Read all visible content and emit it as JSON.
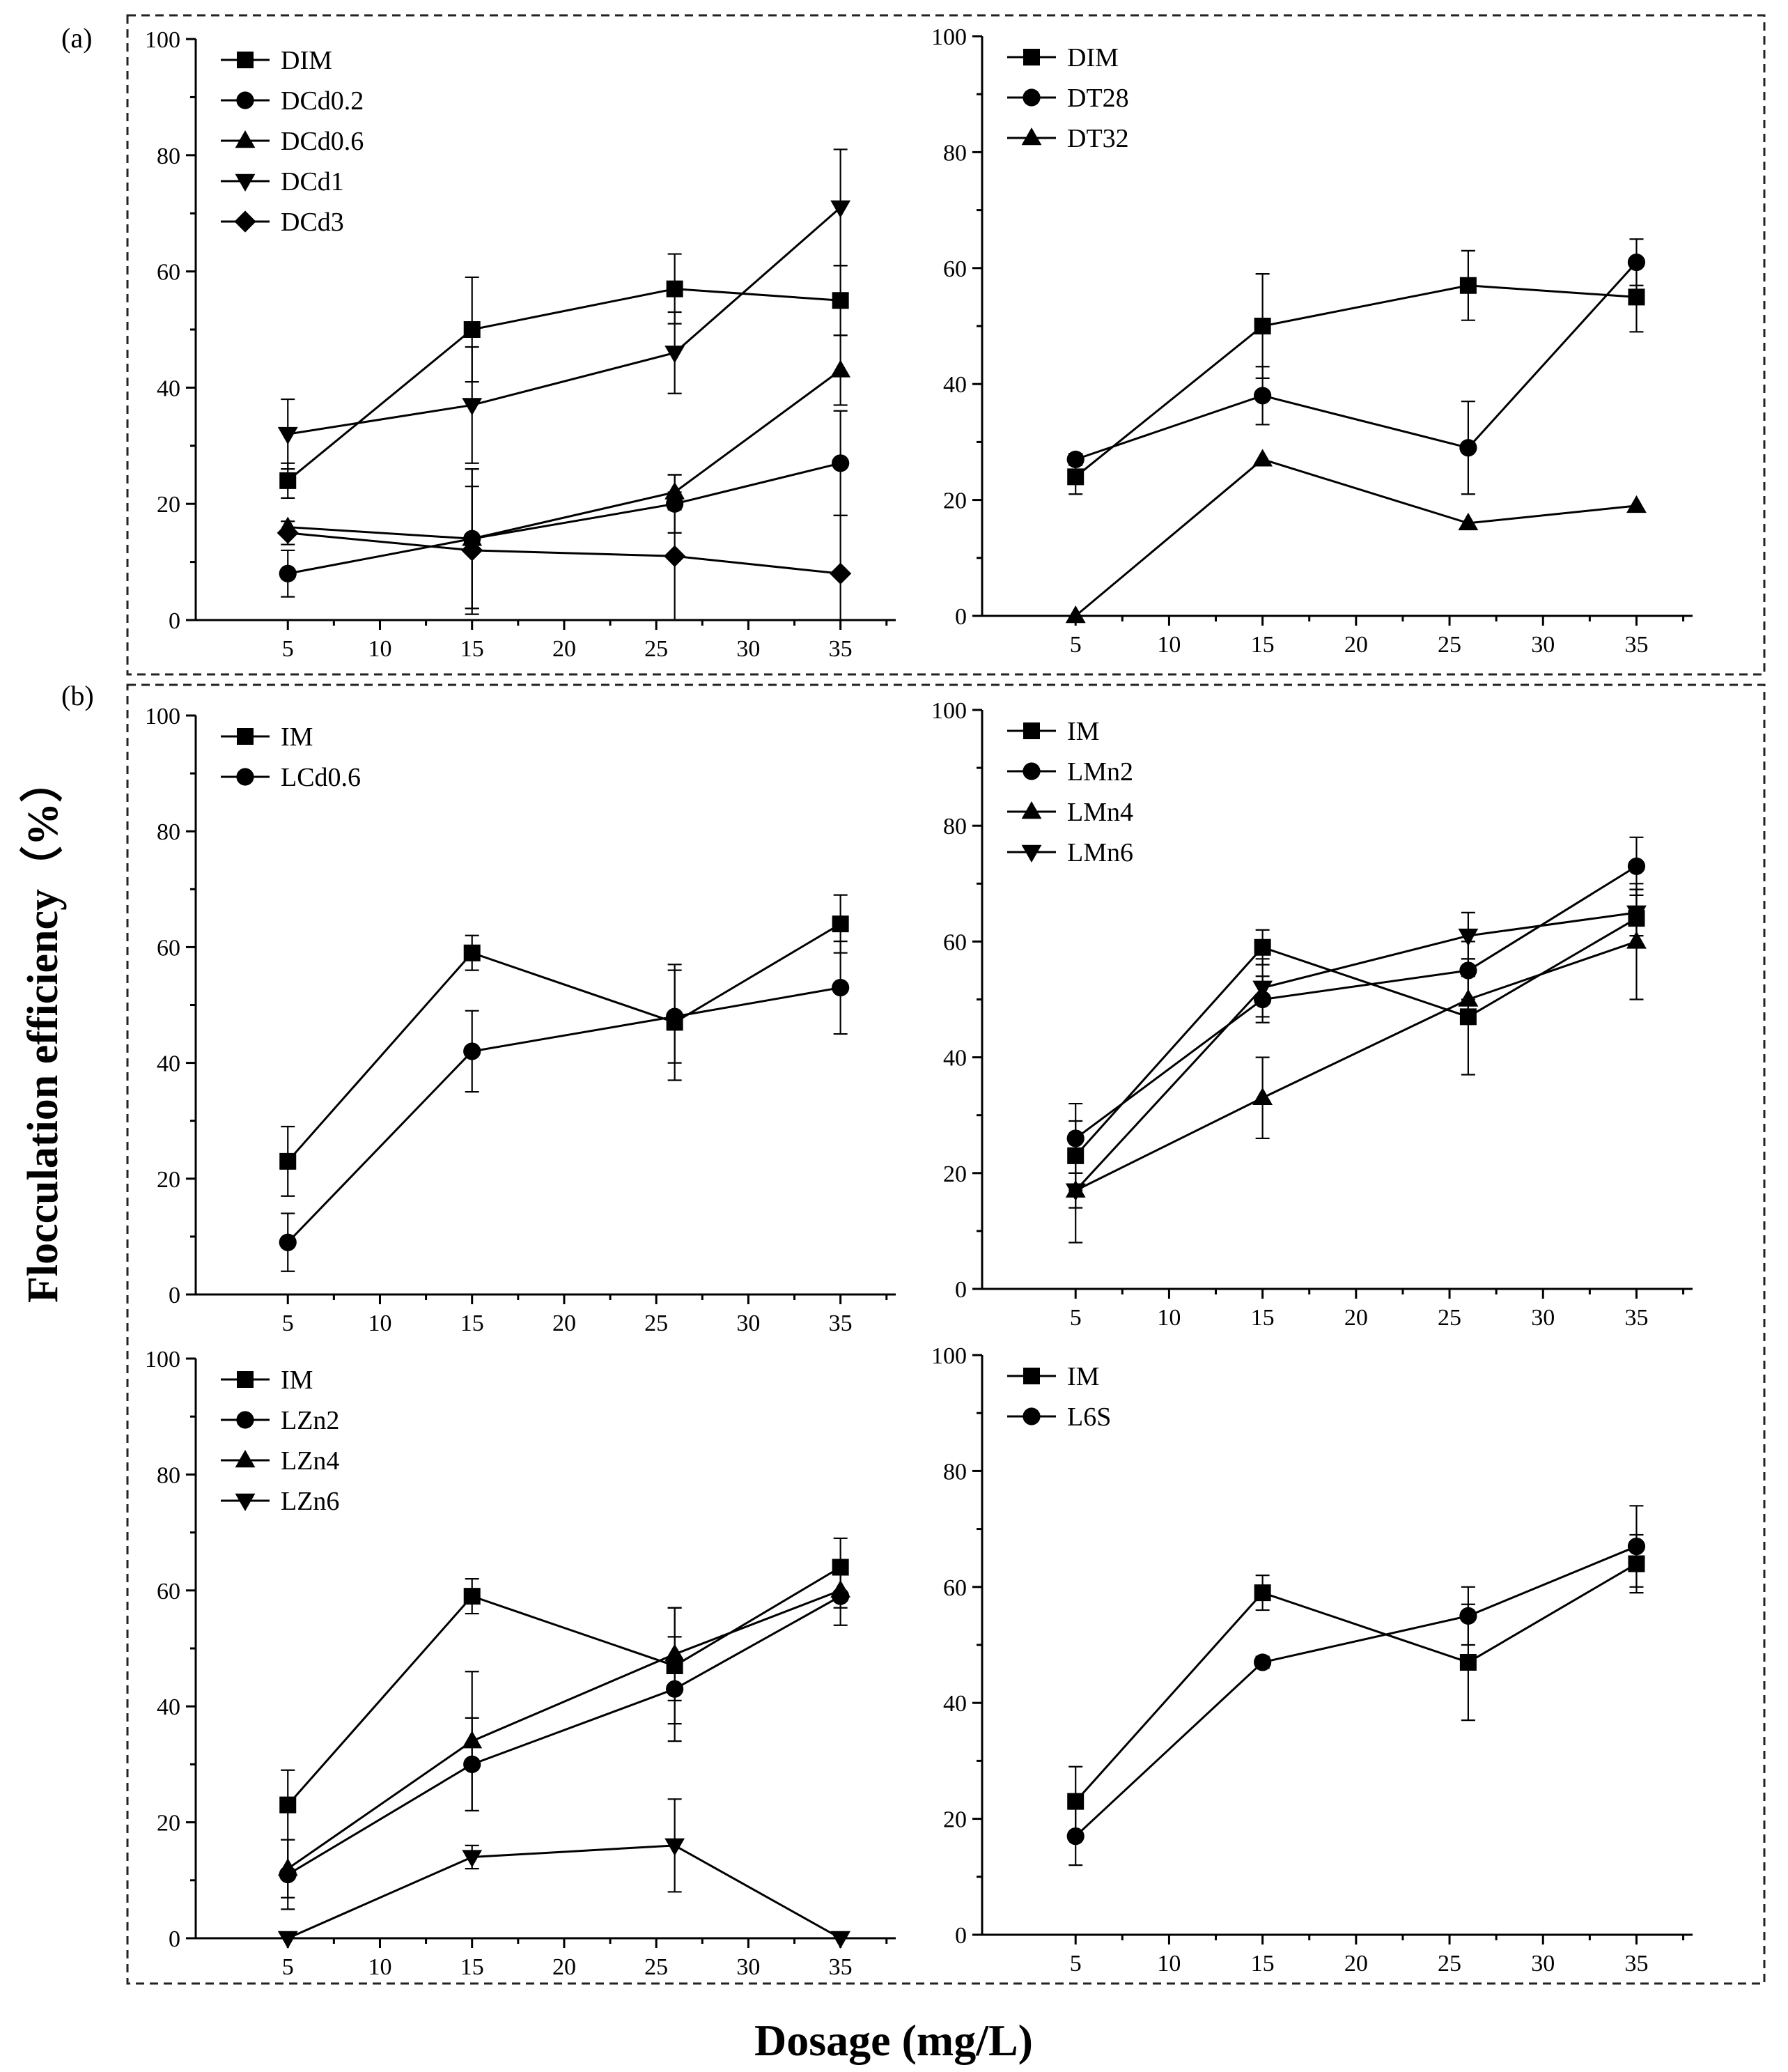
{
  "figure": {
    "panel_a_label": "(a)",
    "panel_b_label": "(b)",
    "ylabel": "Flocculation efficiency（%）",
    "xlabel": "Dosage (mg/L)"
  },
  "chart_data": [
    {
      "type": "line",
      "id": "a-left",
      "xlim": [
        0,
        38
      ],
      "ylim": [
        0,
        100
      ],
      "xticks": [
        5,
        10,
        15,
        20,
        25,
        30,
        35
      ],
      "yticks": [
        0,
        20,
        40,
        60,
        80,
        100
      ],
      "series": [
        {
          "name": "DIM",
          "marker": "square",
          "x": [
            5,
            15,
            26,
            35
          ],
          "values": [
            24,
            50,
            57,
            55
          ],
          "err": [
            3,
            9,
            6,
            6
          ]
        },
        {
          "name": "DCd0.2",
          "marker": "circle",
          "x": [
            5,
            15,
            26,
            35
          ],
          "values": [
            8,
            14,
            20,
            27
          ],
          "err": [
            4,
            12,
            5,
            9
          ]
        },
        {
          "name": "DCd0.6",
          "marker": "triangle-up",
          "x": [
            5,
            15,
            26,
            35
          ],
          "values": [
            16,
            14,
            22,
            43
          ],
          "err": [
            0,
            12,
            3,
            6
          ]
        },
        {
          "name": "DCd1",
          "marker": "triangle-down",
          "x": [
            5,
            15,
            26,
            35
          ],
          "values": [
            32,
            37,
            46,
            71
          ],
          "err": [
            6,
            10,
            7,
            10
          ]
        },
        {
          "name": "DCd3",
          "marker": "diamond",
          "x": [
            5,
            15,
            26,
            35
          ],
          "values": [
            15,
            12,
            11,
            8
          ],
          "err": [
            2,
            11,
            11,
            10
          ]
        }
      ]
    },
    {
      "type": "line",
      "id": "a-right",
      "xlim": [
        0,
        38
      ],
      "ylim": [
        0,
        100
      ],
      "xticks": [
        5,
        10,
        15,
        20,
        25,
        30,
        35
      ],
      "yticks": [
        0,
        20,
        40,
        60,
        80,
        100
      ],
      "series": [
        {
          "name": "DIM",
          "marker": "square",
          "x": [
            5,
            15,
            26,
            35
          ],
          "values": [
            24,
            50,
            57,
            55
          ],
          "err": [
            3,
            9,
            6,
            6
          ]
        },
        {
          "name": "DT28",
          "marker": "circle",
          "x": [
            5,
            15,
            26,
            35
          ],
          "values": [
            27,
            38,
            29,
            61
          ],
          "err": [
            1,
            5,
            8,
            4
          ]
        },
        {
          "name": "DT32",
          "marker": "triangle-up",
          "x": [
            5,
            15,
            26,
            35
          ],
          "values": [
            0,
            27,
            16,
            19
          ],
          "err": [
            0,
            0,
            0,
            0
          ]
        }
      ]
    },
    {
      "type": "line",
      "id": "b-top-left",
      "xlim": [
        0,
        38
      ],
      "ylim": [
        0,
        100
      ],
      "xticks": [
        5,
        10,
        15,
        20,
        25,
        30,
        35
      ],
      "yticks": [
        0,
        20,
        40,
        60,
        80,
        100
      ],
      "series": [
        {
          "name": "IM",
          "marker": "square",
          "x": [
            5,
            15,
            26,
            35
          ],
          "values": [
            23,
            59,
            47,
            64
          ],
          "err": [
            6,
            3,
            10,
            5
          ]
        },
        {
          "name": "LCd0.6",
          "marker": "circle",
          "x": [
            5,
            15,
            26,
            35
          ],
          "values": [
            9,
            42,
            48,
            53
          ],
          "err": [
            5,
            7,
            8,
            8
          ]
        }
      ]
    },
    {
      "type": "line",
      "id": "b-top-right",
      "xlim": [
        0,
        38
      ],
      "ylim": [
        0,
        100
      ],
      "xticks": [
        5,
        10,
        15,
        20,
        25,
        30,
        35
      ],
      "yticks": [
        0,
        20,
        40,
        60,
        80,
        100
      ],
      "series": [
        {
          "name": "IM",
          "marker": "square",
          "x": [
            5,
            15,
            26,
            35
          ],
          "values": [
            23,
            59,
            47,
            64
          ],
          "err": [
            6,
            3,
            10,
            5
          ]
        },
        {
          "name": "LMn2",
          "marker": "circle",
          "x": [
            5,
            15,
            26,
            35
          ],
          "values": [
            26,
            50,
            55,
            73
          ],
          "err": [
            6,
            4,
            5,
            5
          ]
        },
        {
          "name": "LMn4",
          "marker": "triangle-up",
          "x": [
            5,
            15,
            26,
            35
          ],
          "values": [
            17,
            33,
            50,
            60
          ],
          "err": [
            9,
            7,
            4,
            10
          ]
        },
        {
          "name": "LMn6",
          "marker": "triangle-down",
          "x": [
            5,
            15,
            26,
            35
          ],
          "values": [
            17,
            52,
            61,
            65
          ],
          "err": [
            3,
            5,
            4,
            4
          ]
        }
      ]
    },
    {
      "type": "line",
      "id": "b-bottom-left",
      "xlim": [
        0,
        38
      ],
      "ylim": [
        0,
        100
      ],
      "xticks": [
        5,
        10,
        15,
        20,
        25,
        30,
        35
      ],
      "yticks": [
        0,
        20,
        40,
        60,
        80,
        100
      ],
      "series": [
        {
          "name": "IM",
          "marker": "square",
          "x": [
            5,
            15,
            26,
            35
          ],
          "values": [
            23,
            59,
            47,
            64
          ],
          "err": [
            6,
            3,
            10,
            5
          ]
        },
        {
          "name": "LZn2",
          "marker": "circle",
          "x": [
            5,
            15,
            26,
            35
          ],
          "values": [
            11,
            30,
            43,
            59
          ],
          "err": [
            6,
            8,
            9,
            5
          ]
        },
        {
          "name": "LZn4",
          "marker": "triangle-up",
          "x": [
            5,
            15,
            26,
            35
          ],
          "values": [
            12,
            34,
            49,
            60
          ],
          "err": [
            5,
            12,
            8,
            3
          ]
        },
        {
          "name": "LZn6",
          "marker": "triangle-down",
          "x": [
            5,
            15,
            26,
            35
          ],
          "values": [
            0,
            14,
            16,
            0
          ],
          "err": [
            1,
            2,
            8,
            0
          ]
        }
      ]
    },
    {
      "type": "line",
      "id": "b-bottom-right",
      "xlim": [
        0,
        38
      ],
      "ylim": [
        0,
        100
      ],
      "xticks": [
        5,
        10,
        15,
        20,
        25,
        30,
        35
      ],
      "yticks": [
        0,
        20,
        40,
        60,
        80,
        100
      ],
      "series": [
        {
          "name": "IM",
          "marker": "square",
          "x": [
            5,
            15,
            26,
            35
          ],
          "values": [
            23,
            59,
            47,
            64
          ],
          "err": [
            6,
            3,
            10,
            5
          ]
        },
        {
          "name": "L6S",
          "marker": "circle",
          "x": [
            5,
            15,
            26,
            35
          ],
          "values": [
            17,
            47,
            55,
            67
          ],
          "err": [
            5,
            1,
            5,
            7
          ]
        }
      ]
    }
  ]
}
